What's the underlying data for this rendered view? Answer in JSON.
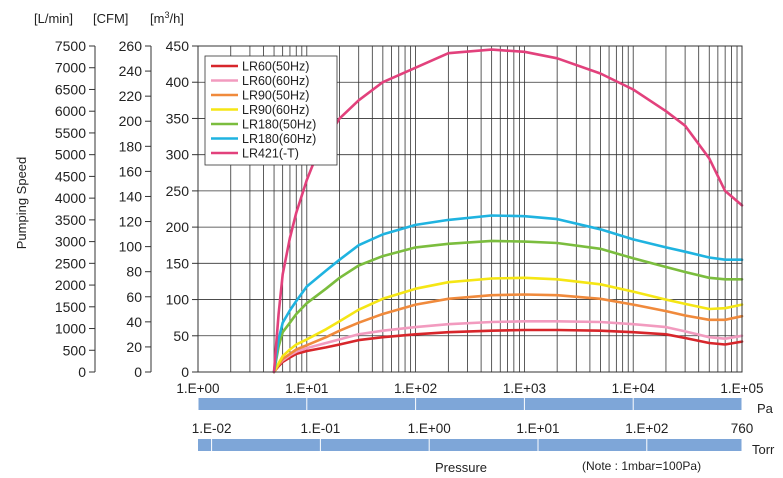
{
  "chart_data": {
    "type": "line",
    "ylabel": "Pumping Speed",
    "xlabel": "Pressure",
    "note": "(Note : 1mbar=100Pa)",
    "x_scale": "log",
    "xlim_pa": [
      1,
      100000
    ],
    "y_axes": [
      {
        "unit": "[L/min]",
        "ylim": [
          0,
          7500
        ],
        "ticks": [
          "0",
          "500",
          "1000",
          "1500",
          "2000",
          "2500",
          "3000",
          "3500",
          "4000",
          "4500",
          "5000",
          "5500",
          "6000",
          "6500",
          "7000",
          "7500"
        ]
      },
      {
        "unit": "[CFM]",
        "ylim": [
          0,
          260
        ],
        "ticks": [
          "0",
          "20",
          "40",
          "60",
          "80",
          "100",
          "120",
          "140",
          "160",
          "180",
          "200",
          "220",
          "240",
          "260"
        ]
      },
      {
        "unit_base": "[m",
        "unit_sup": "3",
        "unit_tail": "/h]",
        "ylim": [
          0,
          450
        ],
        "ticks": [
          "0",
          "50",
          "100",
          "150",
          "200",
          "250",
          "300",
          "350",
          "400",
          "450"
        ]
      }
    ],
    "pa_axis": {
      "unit": "Pa",
      "ticks": [
        {
          "value": 1,
          "label": "1.E+00"
        },
        {
          "value": 10,
          "label": "1.E+01"
        },
        {
          "value": 100,
          "label": "1.E+02"
        },
        {
          "value": 1000,
          "label": "1.E+03"
        },
        {
          "value": 10000,
          "label": "1.E+04"
        },
        {
          "value": 100000,
          "label": "1.E+05"
        }
      ]
    },
    "torr_axis": {
      "unit": "Torr",
      "ticks": [
        {
          "value": 0.01,
          "label": "1.E-02"
        },
        {
          "value": 0.1,
          "label": "1.E-01"
        },
        {
          "value": 1,
          "label": "1.E+00"
        },
        {
          "value": 10,
          "label": "1.E+01"
        },
        {
          "value": 100,
          "label": "1.E+02"
        },
        {
          "value": 760,
          "label": "760"
        }
      ]
    },
    "grid": true,
    "legend_position": "top-left",
    "series": [
      {
        "name": "LR60(50Hz)",
        "color": "#d7262b",
        "x": [
          5,
          5.5,
          6,
          7,
          8,
          10,
          15,
          20,
          30,
          50,
          100,
          200,
          500,
          1000,
          2000,
          5000,
          10000,
          20000,
          30000,
          50000,
          70000,
          100000
        ],
        "y": [
          0,
          8,
          14,
          20,
          25,
          29,
          34,
          38,
          44,
          48,
          52,
          55,
          57,
          58,
          58,
          57,
          55,
          52,
          47,
          40,
          38,
          42
        ]
      },
      {
        "name": "LR60(60Hz)",
        "color": "#f29bbf",
        "x": [
          5,
          5.5,
          6,
          7,
          8,
          10,
          15,
          20,
          30,
          50,
          100,
          200,
          500,
          1000,
          2000,
          5000,
          10000,
          20000,
          30000,
          50000,
          70000,
          100000
        ],
        "y": [
          0,
          10,
          16,
          23,
          28,
          33,
          40,
          45,
          52,
          57,
          62,
          66,
          69,
          70,
          70,
          69,
          66,
          62,
          56,
          48,
          46,
          50
        ]
      },
      {
        "name": "LR90(50Hz)",
        "color": "#f08a3c",
        "x": [
          5,
          5.5,
          6,
          7,
          8,
          10,
          15,
          20,
          30,
          50,
          100,
          200,
          500,
          1000,
          2000,
          5000,
          10000,
          20000,
          30000,
          50000,
          70000,
          100000
        ],
        "y": [
          0,
          10,
          18,
          25,
          31,
          37,
          48,
          57,
          68,
          80,
          93,
          101,
          106,
          107,
          106,
          101,
          93,
          84,
          78,
          72,
          72,
          77
        ]
      },
      {
        "name": "LR90(60Hz)",
        "color": "#f5e614",
        "x": [
          5,
          5.5,
          6,
          7,
          8,
          10,
          15,
          20,
          30,
          50,
          100,
          200,
          500,
          1000,
          2000,
          5000,
          10000,
          20000,
          30000,
          50000,
          70000,
          100000
        ],
        "y": [
          0,
          12,
          22,
          31,
          38,
          45,
          59,
          70,
          86,
          101,
          115,
          124,
          129,
          130,
          128,
          121,
          111,
          100,
          94,
          87,
          88,
          93
        ]
      },
      {
        "name": "LR180(50Hz)",
        "color": "#7bbd3e",
        "x": [
          5,
          5.5,
          6,
          7,
          8,
          10,
          15,
          20,
          30,
          50,
          100,
          200,
          500,
          1000,
          2000,
          5000,
          10000,
          20000,
          30000,
          50000,
          70000,
          100000
        ],
        "y": [
          0,
          35,
          55,
          68,
          80,
          95,
          115,
          130,
          147,
          160,
          172,
          177,
          181,
          180,
          178,
          170,
          157,
          145,
          138,
          130,
          128,
          128
        ]
      },
      {
        "name": "LR180(60Hz)",
        "color": "#1fb3e0",
        "x": [
          5,
          5.5,
          6,
          7,
          8,
          10,
          15,
          20,
          30,
          50,
          100,
          200,
          500,
          1000,
          2000,
          5000,
          10000,
          20000,
          30000,
          50000,
          70000,
          100000
        ],
        "y": [
          0,
          45,
          68,
          85,
          98,
          118,
          140,
          155,
          175,
          190,
          203,
          210,
          216,
          215,
          211,
          197,
          183,
          172,
          166,
          158,
          155,
          155
        ]
      },
      {
        "name": "LR421(-T)",
        "color": "#e2417c",
        "x": [
          5,
          5.5,
          6,
          7,
          8,
          10,
          12,
          15,
          20,
          30,
          50,
          100,
          200,
          500,
          1000,
          2000,
          5000,
          10000,
          20000,
          30000,
          50000,
          70000,
          100000
        ],
        "y": [
          0,
          80,
          135,
          185,
          220,
          265,
          295,
          320,
          350,
          375,
          400,
          420,
          440,
          445,
          442,
          433,
          412,
          390,
          360,
          340,
          295,
          250,
          230
        ]
      }
    ]
  }
}
